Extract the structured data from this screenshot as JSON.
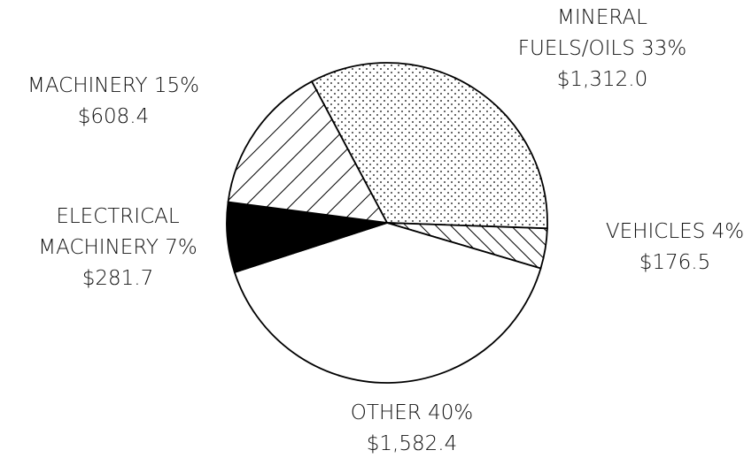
{
  "chart_data": {
    "type": "pie",
    "categories": [
      "MINERAL FUELS/OILS",
      "VEHICLES",
      "OTHER",
      "ELECTRICAL MACHINERY",
      "MACHINERY"
    ],
    "values": [
      33,
      4,
      40,
      7,
      15
    ],
    "value_labels": [
      "33%",
      "4%",
      "40%",
      "7%",
      "15%"
    ],
    "amounts": [
      1312.0,
      176.5,
      1582.4,
      281.7,
      608.4
    ],
    "amount_labels": [
      "$1,312.0",
      "$176.5",
      "$1,582.4",
      "$281.7",
      "$608.4"
    ],
    "patterns": [
      "dots",
      "backslash",
      "none",
      "solid",
      "slash"
    ],
    "color": "#000000"
  }
}
